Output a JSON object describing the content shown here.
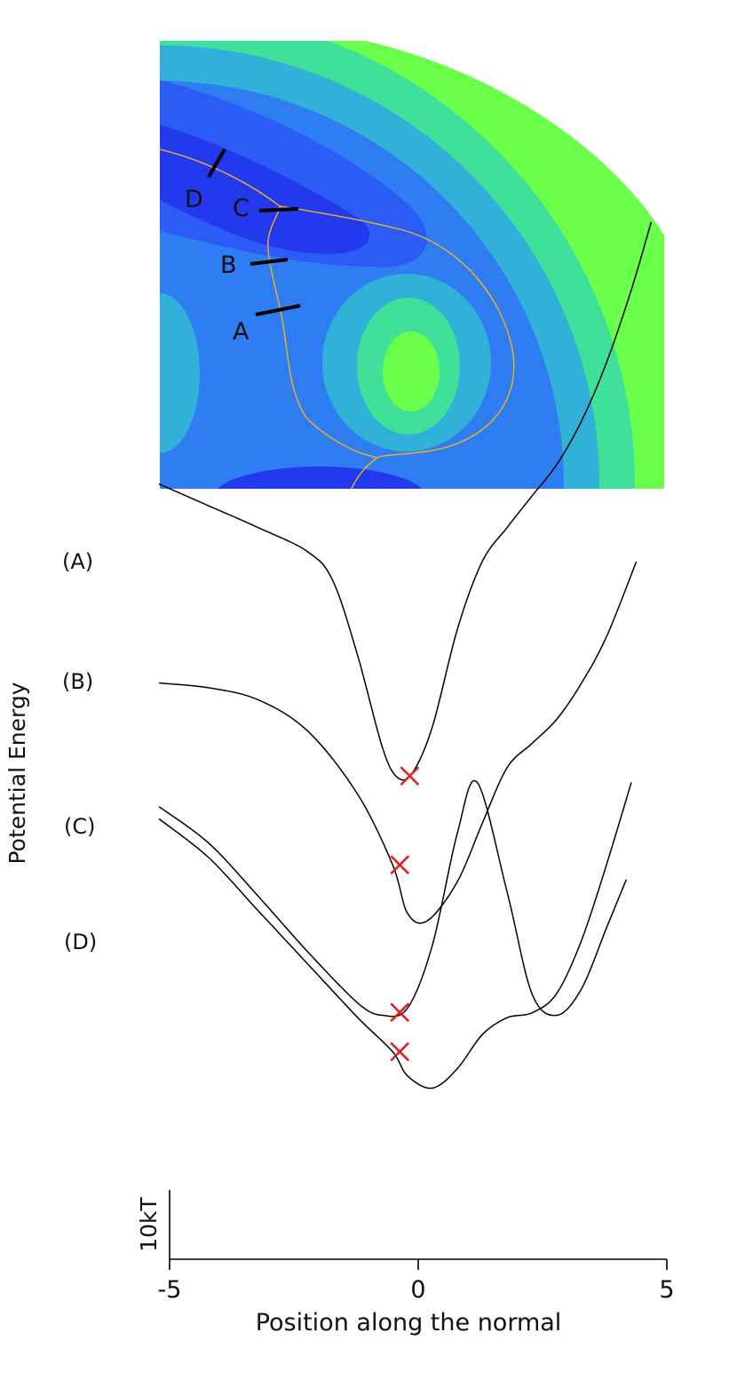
{
  "map": {
    "markers": [
      {
        "label": "A"
      },
      {
        "label": "B"
      },
      {
        "label": "C"
      },
      {
        "label": "D"
      }
    ],
    "colors": {
      "deep": "#2239ee",
      "low": "#2b5cf5",
      "mid": "#2e7df2",
      "cyan": "#31b0d8",
      "teal": "#3fe09a",
      "green": "#6aff4a",
      "path": "#f0b020"
    }
  },
  "chart_data": {
    "type": "line",
    "xlabel": "Position along the normal",
    "ylabel": "Potential Energy",
    "xlim": [
      -5,
      5
    ],
    "xticks": [
      "-5",
      "0",
      "5"
    ],
    "scale_bar_label": "10kT",
    "scale_bar_value": 10,
    "marker_color": "#e02020",
    "series": [
      {
        "name": "(A)",
        "x": [
          -5,
          -4,
          -3,
          -2,
          -1,
          -0.5,
          0,
          0.5,
          1.0,
          1.4,
          2.0,
          2.5,
          3.0,
          3.5,
          4.0,
          4.4
        ],
        "y": [
          17.3,
          15.8,
          13.6,
          11.3,
          9.2,
          8.7,
          9.0,
          11.6,
          16.2,
          18.3,
          13.8,
          9.6,
          8.7,
          9.8,
          12.3,
          14.3
        ],
        "min_marker_x": -0.3
      },
      {
        "name": "(B)",
        "x": [
          -5,
          -4,
          -3,
          -2,
          -1,
          -0.3,
          0,
          0.5,
          1.0,
          1.5,
          2.0,
          2.5,
          3.0,
          3.5,
          4.0,
          4.5
        ],
        "y": [
          16.8,
          15.2,
          13.0,
          10.8,
          8.6,
          7.2,
          6.2,
          5.7,
          6.5,
          7.9,
          8.6,
          8.8,
          9.6,
          11.8,
          14.9,
          18.3
        ],
        "min_marker_x": -0.3
      },
      {
        "name": "(C)",
        "x": [
          -5,
          -4,
          -3,
          -2,
          -1,
          -0.3,
          0,
          0.4,
          1.0,
          1.5,
          2.0,
          2.5,
          3.0,
          3.5,
          4.0,
          4.6
        ],
        "y": [
          22.4,
          22.2,
          21.7,
          20.4,
          17.8,
          14.9,
          12.9,
          12.6,
          14.2,
          16.6,
          18.9,
          19.9,
          20.9,
          22.4,
          24.3,
          27.4
        ],
        "min_marker_x": -0.3
      },
      {
        "name": "(D)",
        "x": [
          -5,
          -4,
          -3,
          -2,
          -1.5,
          -1.0,
          -0.5,
          -0.2,
          0.1,
          0.5,
          1.0,
          1.5,
          2.0,
          2.5,
          3.0,
          3.5,
          4.0,
          4.5,
          4.9
        ],
        "y": [
          30.6,
          29.7,
          28.8,
          27.8,
          26.6,
          23.5,
          19.7,
          18.5,
          18.7,
          20.6,
          24.6,
          27.4,
          28.8,
          30.1,
          31.4,
          33.2,
          35.6,
          38.6,
          41.4
        ],
        "min_marker_x": -0.1
      }
    ]
  }
}
